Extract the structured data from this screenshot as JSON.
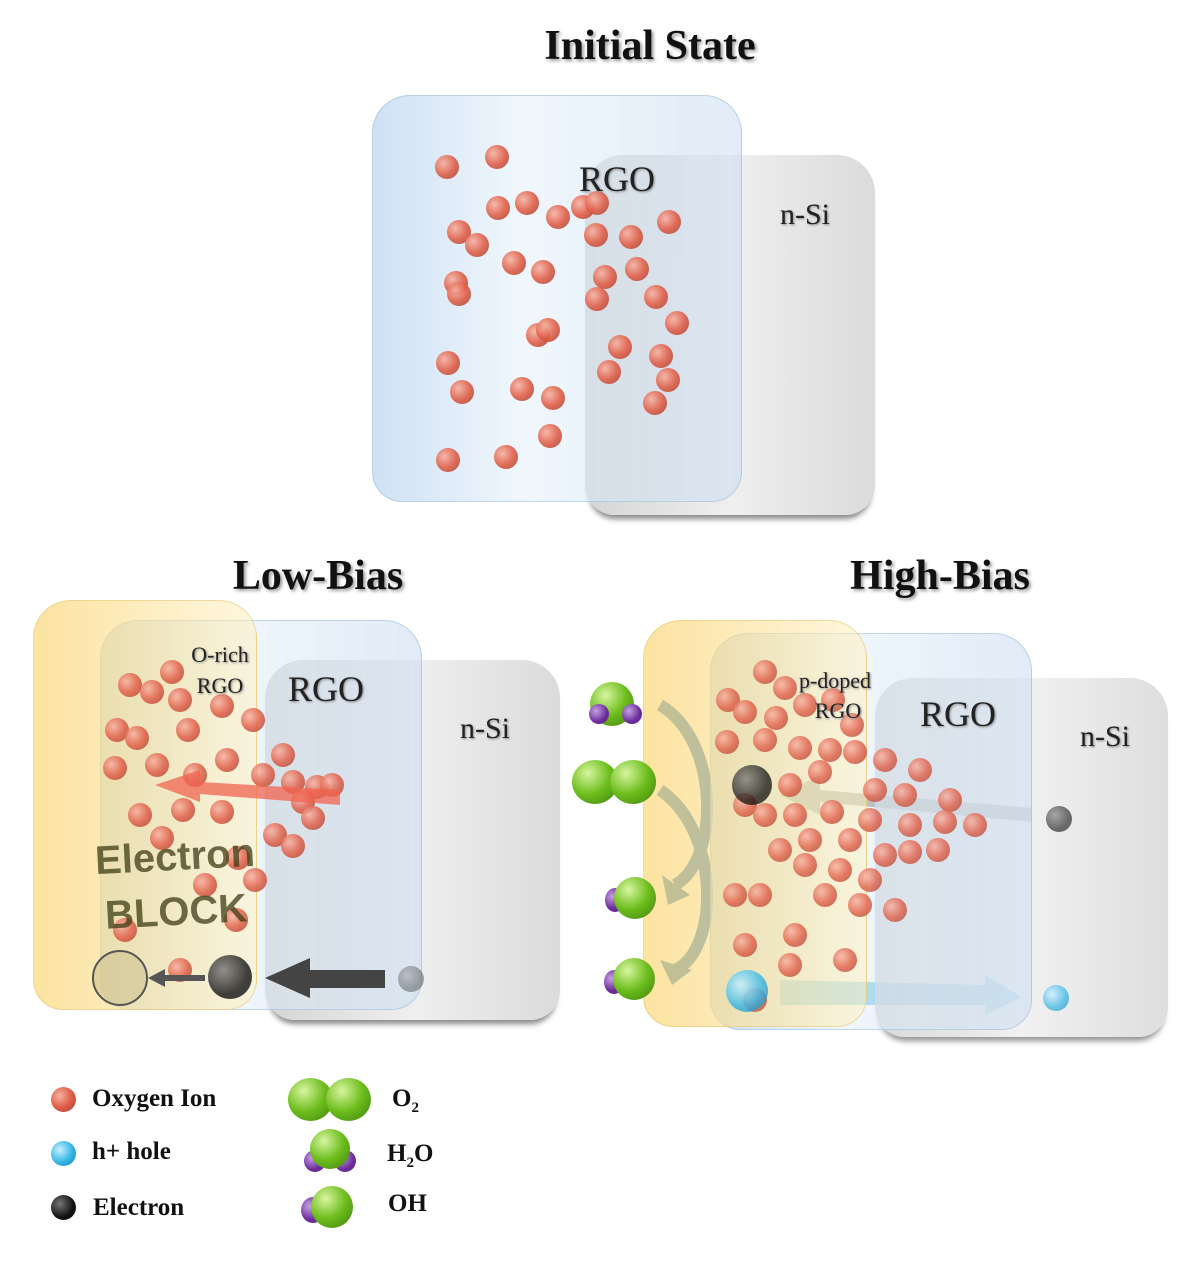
{
  "initial": {
    "title": "Initial State",
    "rgo_label": "RGO",
    "nsi_label": "n-Si"
  },
  "low_bias": {
    "title": "Low-Bias",
    "orich_line1": "O-rich",
    "orich_line2": "RGO",
    "rgo_label": "RGO",
    "nsi_label": "n-Si",
    "block_line1": "Electron",
    "block_line2": "BLOCK"
  },
  "high_bias": {
    "title": "High-Bias",
    "pdoped_line1": "p-doped",
    "pdoped_line2": "RGO",
    "rgo_label": "RGO",
    "nsi_label": "n-Si"
  },
  "legend": {
    "oxygen_ion": "Oxygen Ion",
    "hole_sup": "h+",
    "hole_rest": "hole",
    "electron": "Electron",
    "o2_base": "O",
    "o2_sub": "2",
    "h2o_h": "H",
    "h2o_sub": "2",
    "h2o_o": "O",
    "oh": "OH"
  },
  "colors": {
    "oxygen_ion": "#e0604a",
    "hole": "#35b5e5",
    "electron": "#111111",
    "molecule_green": "#6cbd1c",
    "molecule_purple": "#6a2a9a",
    "rgo": "#bed7f0",
    "p_layer": "#fad778",
    "nsi": "#d0d0d0"
  }
}
